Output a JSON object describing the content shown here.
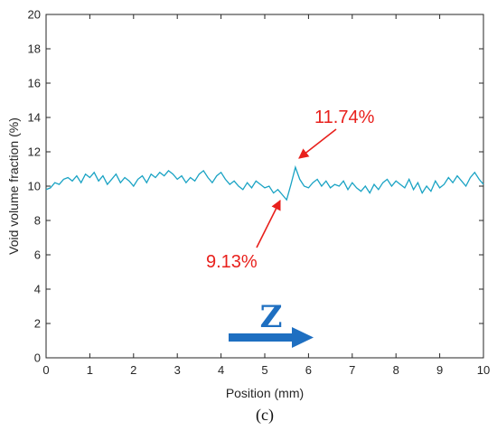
{
  "chart_data": {
    "type": "line",
    "xlabel": "Position (mm)",
    "ylabel": "Void volume fraction (%)",
    "xlim": [
      0,
      10
    ],
    "ylim": [
      0,
      20
    ],
    "xticks": [
      "0",
      "1",
      "2",
      "3",
      "4",
      "5",
      "6",
      "7",
      "8",
      "9",
      "10"
    ],
    "yticks": [
      "0",
      "2",
      "4",
      "6",
      "8",
      "10",
      "12",
      "14",
      "16",
      "18",
      "20"
    ],
    "grid": false,
    "series": [
      {
        "color": "#1aa3c4",
        "x": [
          0,
          0.1,
          0.2,
          0.3,
          0.4,
          0.5,
          0.6,
          0.7,
          0.8,
          0.9,
          1.0,
          1.1,
          1.2,
          1.3,
          1.4,
          1.5,
          1.6,
          1.7,
          1.8,
          1.9,
          2.0,
          2.1,
          2.2,
          2.3,
          2.4,
          2.5,
          2.6,
          2.7,
          2.8,
          2.9,
          3.0,
          3.1,
          3.2,
          3.3,
          3.4,
          3.5,
          3.6,
          3.7,
          3.8,
          3.9,
          4.0,
          4.1,
          4.2,
          4.3,
          4.4,
          4.5,
          4.6,
          4.7,
          4.8,
          4.9,
          5.0,
          5.1,
          5.2,
          5.3,
          5.4,
          5.5,
          5.6,
          5.7,
          5.8,
          5.9,
          6.0,
          6.1,
          6.2,
          6.3,
          6.4,
          6.5,
          6.6,
          6.7,
          6.8,
          6.9,
          7.0,
          7.1,
          7.2,
          7.3,
          7.4,
          7.5,
          7.6,
          7.7,
          7.8,
          7.9,
          8.0,
          8.1,
          8.2,
          8.3,
          8.4,
          8.5,
          8.6,
          8.7,
          8.8,
          8.9,
          9.0,
          9.1,
          9.2,
          9.3,
          9.4,
          9.5,
          9.6,
          9.7,
          9.8,
          9.9,
          10.0
        ],
        "y": [
          9.8,
          9.9,
          10.2,
          10.1,
          10.4,
          10.5,
          10.3,
          10.6,
          10.2,
          10.7,
          10.5,
          10.8,
          10.3,
          10.6,
          10.1,
          10.4,
          10.7,
          10.2,
          10.5,
          10.3,
          10.0,
          10.4,
          10.6,
          10.2,
          10.7,
          10.5,
          10.8,
          10.6,
          10.9,
          10.7,
          10.4,
          10.6,
          10.2,
          10.5,
          10.3,
          10.7,
          10.9,
          10.5,
          10.2,
          10.6,
          10.8,
          10.4,
          10.1,
          10.3,
          10.0,
          9.8,
          10.2,
          9.9,
          10.3,
          10.1,
          9.9,
          10.0,
          9.6,
          9.8,
          9.5,
          9.2,
          10.1,
          11.1,
          10.4,
          10.0,
          9.9,
          10.2,
          10.4,
          10.0,
          10.3,
          9.9,
          10.1,
          10.0,
          10.3,
          9.8,
          10.2,
          9.9,
          9.7,
          10.0,
          9.6,
          10.1,
          9.8,
          10.2,
          10.4,
          10.0,
          10.3,
          10.1,
          9.9,
          10.4,
          9.8,
          10.2,
          9.6,
          10.0,
          9.7,
          10.3,
          9.9,
          10.1,
          10.5,
          10.2,
          10.6,
          10.3,
          10.0,
          10.5,
          10.8,
          10.4,
          10.1
        ]
      }
    ],
    "annotations": [
      {
        "text": "11.74%",
        "color": "#e8201c",
        "x": 5.65,
        "y": 11.5
      },
      {
        "text": "9.13%",
        "color": "#e8201c",
        "x": 5.4,
        "y": 9.2
      }
    ],
    "direction_label": "Z",
    "direction_color": "#1e6fc1",
    "panel_label": "(c)"
  }
}
